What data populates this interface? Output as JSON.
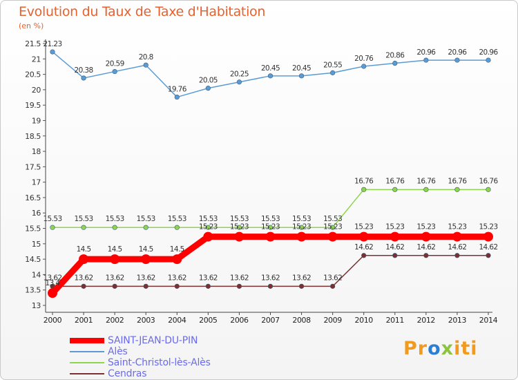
{
  "chart_data": {
    "type": "line",
    "title": "Evolution du Taux de Taxe d'Habitation",
    "subtitle": "(en %)",
    "xlabel": "",
    "ylabel": "",
    "categories": [
      "2000",
      "2001",
      "2002",
      "2003",
      "2004",
      "2005",
      "2006",
      "2007",
      "2008",
      "2009",
      "2010",
      "2011",
      "2012",
      "2013",
      "2014"
    ],
    "ylim": [
      13,
      21.5
    ],
    "yticks": [
      "13",
      "13.5",
      "14",
      "14.5",
      "15",
      "15.5",
      "16",
      "16.5",
      "17",
      "17.5",
      "18",
      "18.5",
      "19",
      "19.5",
      "20",
      "20.5",
      "21",
      "21.5"
    ],
    "series": [
      {
        "name": "SAINT-JEAN-DU-PIN",
        "color": "#ff0000",
        "values": [
          13.4,
          14.5,
          14.5,
          14.5,
          14.5,
          15.23,
          15.23,
          15.23,
          15.23,
          15.23,
          15.23,
          15.23,
          15.23,
          15.23,
          15.23
        ],
        "labels": [
          "13.4",
          "14.5",
          "14.5",
          "14.5",
          "14.5",
          "15.23",
          "15.23",
          "15.23",
          "15.23",
          "15.23",
          "15.23",
          "15.23",
          "15.23",
          "15.23",
          "15.23"
        ]
      },
      {
        "name": "Alès",
        "color": "#5b9bd5",
        "values": [
          21.23,
          20.38,
          20.59,
          20.8,
          19.76,
          20.05,
          20.25,
          20.45,
          20.45,
          20.55,
          20.76,
          20.86,
          20.96,
          20.96,
          20.96
        ],
        "labels": [
          "21.23",
          "20.38",
          "20.59",
          "20.8",
          "19.76",
          "20.05",
          "20.25",
          "20.45",
          "20.45",
          "20.55",
          "20.76",
          "20.86",
          "20.96",
          "20.96",
          "20.96"
        ]
      },
      {
        "name": "Saint-Christol-lès-Alès",
        "color": "#8ed44e",
        "values": [
          15.53,
          15.53,
          15.53,
          15.53,
          15.53,
          15.53,
          15.53,
          15.53,
          15.53,
          15.53,
          16.76,
          16.76,
          16.76,
          16.76,
          16.76
        ],
        "labels": [
          "15.53",
          "15.53",
          "15.53",
          "15.53",
          "15.53",
          "15.53",
          "15.53",
          "15.53",
          "15.53",
          "15.53",
          "16.76",
          "16.76",
          "16.76",
          "16.76",
          "16.76"
        ]
      },
      {
        "name": "Cendras",
        "color": "#7a3030",
        "values": [
          13.62,
          13.62,
          13.62,
          13.62,
          13.62,
          13.62,
          13.62,
          13.62,
          13.62,
          13.62,
          14.62,
          14.62,
          14.62,
          14.62,
          14.62
        ],
        "labels": [
          "13.62",
          "13.62",
          "13.62",
          "13.62",
          "13.62",
          "13.62",
          "13.62",
          "13.62",
          "13.62",
          "13.62",
          "14.62",
          "14.62",
          "14.62",
          "14.62",
          "14.62"
        ]
      }
    ],
    "legend_position": "bottom-left"
  },
  "logo": {
    "text": "Proxiti",
    "part1": "Pr",
    "part2": "o",
    "part3": "x",
    "part4": "iti"
  }
}
